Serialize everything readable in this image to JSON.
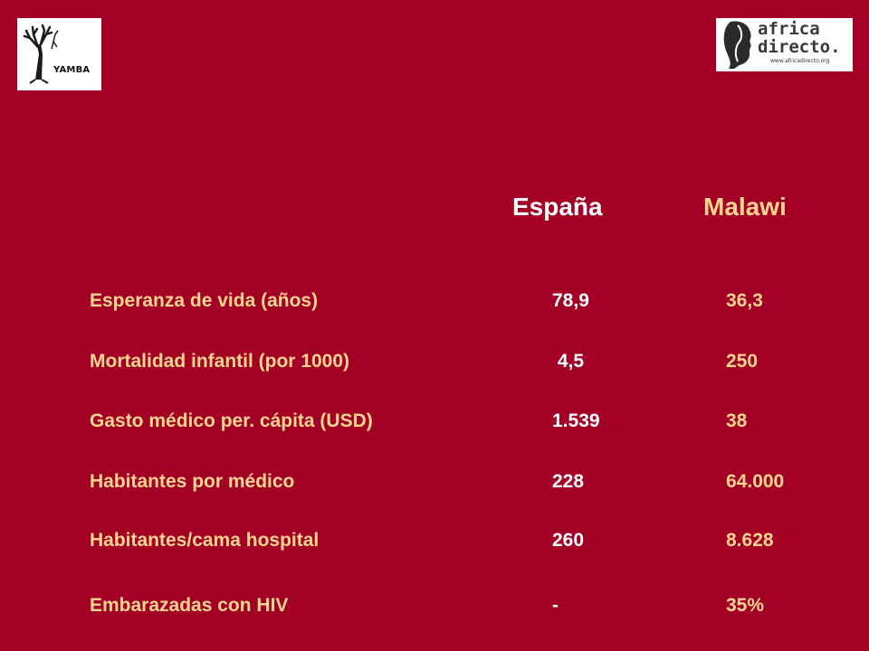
{
  "logos": {
    "left_text": "YAMBA",
    "right_line1": "africa",
    "right_line2": "directo.",
    "right_url": "www.africadirecto.org"
  },
  "headers": {
    "col1": "España",
    "col2": "Malawi"
  },
  "rows": [
    {
      "label": "Esperanza de vida (años)",
      "espana": "78,9",
      "malawi": "36,3"
    },
    {
      "label": "Mortalidad infantil (por 1000)",
      "espana": " 4,5",
      "malawi": "250"
    },
    {
      "label": "Gasto médico per. cápita (USD)",
      "espana": "1.539",
      "malawi": "38"
    },
    {
      "label": "Habitantes por médico",
      "espana": "228",
      "malawi": "64.000"
    },
    {
      "label": "Habitantes/cama hospital",
      "espana": "260",
      "malawi": "8.628"
    },
    {
      "label": "Embarazadas con HIV",
      "espana": "-",
      "malawi": "35%"
    }
  ],
  "colors": {
    "background": "#a30025",
    "header_espana": "#ffffff",
    "header_malawi": "#ffd68f",
    "label": "#ffd68f",
    "value_espana": "#ffffff"
  }
}
